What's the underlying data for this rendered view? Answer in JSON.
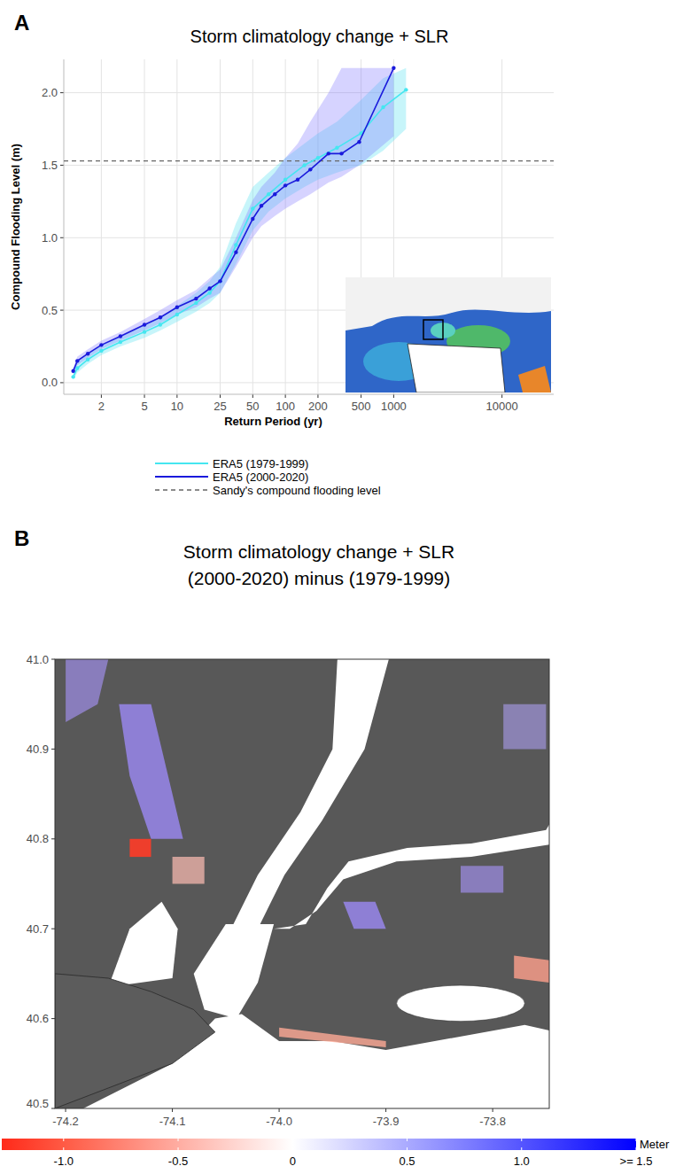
{
  "chart_data": [
    {
      "type": "line",
      "label": "A",
      "title": "Storm climatology change + SLR",
      "x_label": "Return Period (yr)",
      "y_label": "Compound Flooding Level (m)",
      "log": "x",
      "grid": true,
      "legend": "bottom",
      "xlim": [
        0.9,
        30000
      ],
      "xticks": [
        2,
        5,
        10,
        25,
        50,
        100,
        200,
        500,
        1000,
        10000
      ],
      "ylim": [
        -0.08,
        2.23
      ],
      "yticks": [
        {
          "value": 0,
          "label": "0.0"
        },
        {
          "value": 0.5,
          "label": "0.5"
        },
        {
          "value": 1,
          "label": "1.0"
        },
        {
          "value": 1.5,
          "label": "1.5"
        },
        {
          "value": 2,
          "label": "2.0"
        }
      ],
      "series": [
        {
          "name": "ERA5 (1979-1999)",
          "color": "#45e6f0",
          "marker": "circle",
          "x": [
            1.1,
            1.2,
            1.5,
            2,
            3,
            5,
            7,
            10,
            15,
            20,
            25,
            35,
            50,
            70,
            100,
            150,
            200,
            300,
            500,
            800,
            1300
          ],
          "values": [
            0.04,
            0.1,
            0.16,
            0.22,
            0.28,
            0.35,
            0.4,
            0.47,
            0.55,
            0.62,
            0.7,
            0.95,
            1.2,
            1.3,
            1.4,
            1.5,
            1.55,
            1.62,
            1.72,
            1.9,
            2.02
          ],
          "lower": [
            0.02,
            0.07,
            0.13,
            0.19,
            0.25,
            0.31,
            0.36,
            0.42,
            0.49,
            0.55,
            0.62,
            0.82,
            1.05,
            1.18,
            1.27,
            1.35,
            1.4,
            1.45,
            1.5,
            1.6,
            1.75
          ],
          "upper": [
            0.07,
            0.14,
            0.2,
            0.26,
            0.32,
            0.4,
            0.45,
            0.53,
            0.62,
            0.7,
            0.8,
            1.1,
            1.35,
            1.45,
            1.55,
            1.65,
            1.72,
            1.8,
            1.95,
            2.1,
            2.17
          ]
        },
        {
          "name": "ERA5 (2000-2020)",
          "color": "#1a1adc",
          "marker": "circle",
          "x": [
            1.1,
            1.2,
            1.5,
            2,
            3,
            5,
            7,
            10,
            15,
            20,
            25,
            35,
            50,
            60,
            80,
            100,
            130,
            170,
            250,
            330,
            480,
            1000
          ],
          "values": [
            0.08,
            0.15,
            0.2,
            0.26,
            0.32,
            0.4,
            0.45,
            0.52,
            0.58,
            0.65,
            0.7,
            0.9,
            1.13,
            1.22,
            1.3,
            1.36,
            1.4,
            1.47,
            1.58,
            1.58,
            1.66,
            2.17
          ],
          "lower": [
            0.06,
            0.12,
            0.17,
            0.23,
            0.29,
            0.36,
            0.41,
            0.47,
            0.52,
            0.58,
            0.62,
            0.8,
            1.0,
            1.08,
            1.15,
            1.2,
            1.25,
            1.3,
            1.38,
            1.42,
            1.5,
            1.7
          ],
          "upper": [
            0.1,
            0.18,
            0.23,
            0.29,
            0.35,
            0.44,
            0.5,
            0.57,
            0.64,
            0.72,
            0.78,
            1.0,
            1.26,
            1.35,
            1.45,
            1.55,
            1.65,
            1.8,
            2.0,
            2.17,
            2.17,
            2.17
          ]
        }
      ],
      "reference_line": {
        "name": "Sandy's compound flooding level",
        "value": 1.53,
        "color": "#666666",
        "line_style": "dashed"
      }
    },
    {
      "type": "map",
      "label": "B",
      "title": "Storm climatology change + SLR",
      "subtitle": "(2000-2020) minus (1979-1999)",
      "xlim": [
        -74.21,
        -73.747
      ],
      "xticks": [
        {
          "value": -74.2,
          "label": "-74.2"
        },
        {
          "value": -74.1,
          "label": "-74.1"
        },
        {
          "value": -74.0,
          "label": "-74.0"
        },
        {
          "value": -73.9,
          "label": "-73.9"
        },
        {
          "value": -73.8,
          "label": "-73.8"
        }
      ],
      "ylim": [
        40.5,
        41.0
      ],
      "yticks": [
        40.5,
        40.6,
        40.7,
        40.8,
        40.9,
        {
          "value": 41.0,
          "label": "41.0"
        }
      ],
      "colorbar": {
        "title": "Meter",
        "range": [
          -1.27,
          1.5
        ],
        "ticks": [
          {
            "value": -1,
            "label": "-1.0"
          },
          -0.5,
          0,
          0.5,
          {
            "value": 1,
            "label": "1.0"
          },
          {
            "value": 1.5,
            "label": ">= 1.5"
          }
        ]
      }
    }
  ]
}
